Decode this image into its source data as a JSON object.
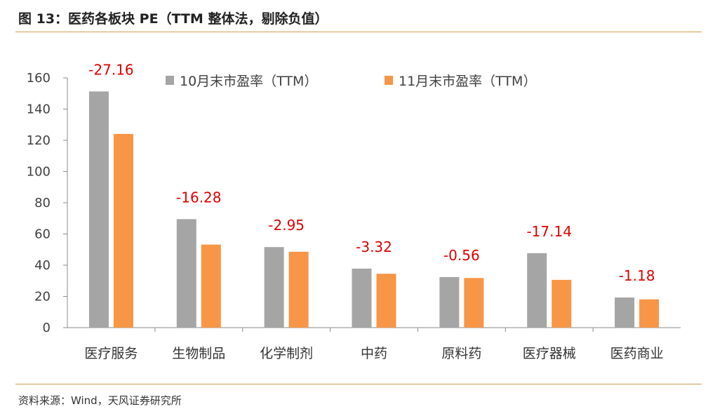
{
  "title": "图 13：医药各板块 PE（TTM 整体法，剔除负值）",
  "source": "资料来源：Wind，天风证券研究所",
  "colors": {
    "series1": "#a5a5a5",
    "series2": "#f79646",
    "annotation": "#e00000",
    "rule": "#d29b52"
  },
  "chart_data": {
    "type": "bar",
    "categories": [
      "医疗服务",
      "生物制品",
      "化学制剂",
      "中药",
      "原料药",
      "医疗器械",
      "医药商业"
    ],
    "series": [
      {
        "name": "10月末市盈率（TTM）",
        "values": [
          151.3,
          69.5,
          51.6,
          37.8,
          32.4,
          47.7,
          19.3
        ]
      },
      {
        "name": "11月末市盈率（TTM）",
        "values": [
          124.1,
          53.2,
          48.6,
          34.5,
          31.8,
          30.6,
          18.1
        ]
      }
    ],
    "annotations": [
      "-27.16",
      "-16.28",
      "-2.95",
      "-3.32",
      "-0.56",
      "-17.14",
      "-1.18"
    ],
    "ylim": [
      0,
      160
    ],
    "yticks": [
      0,
      20,
      40,
      60,
      80,
      100,
      120,
      140,
      160
    ],
    "legend_position": "top",
    "grid": false
  }
}
